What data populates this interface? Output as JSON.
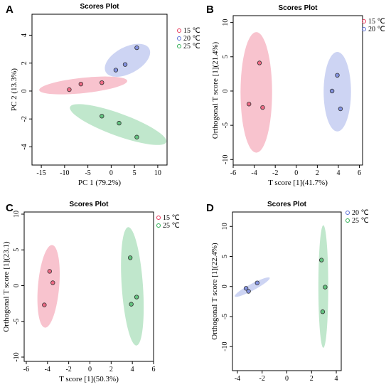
{
  "colors": {
    "15C": "#e8395c",
    "20C": "#5a6fd6",
    "25C": "#2fae55"
  },
  "chart_data": [
    {
      "panel": "A",
      "type": "scatter",
      "title": "Scores Plot",
      "xlabel": "PC 1 (79.2%)",
      "ylabel": "PC 2 (13.3%)",
      "xlim": [
        -17,
        12
      ],
      "ylim": [
        -5.3,
        5.5
      ],
      "xticks": [
        -15,
        -10,
        -5,
        0,
        5,
        10
      ],
      "yticks": [
        -4,
        -2,
        0,
        2,
        4
      ],
      "grid": false,
      "legend_position": "top-right",
      "series": [
        {
          "name": "15 ℃",
          "key": "15C",
          "points": [
            [
              -9,
              0.1
            ],
            [
              -6.5,
              0.5
            ],
            [
              -2,
              0.6
            ]
          ],
          "ellipse": {
            "cx": -6,
            "cy": 0.4,
            "rx": 9.5,
            "ry": 0.55,
            "angle": 6
          }
        },
        {
          "name": "20 ℃",
          "key": "20C",
          "points": [
            [
              1,
              1.5
            ],
            [
              3,
              1.9
            ],
            [
              5.5,
              3.1
            ]
          ],
          "ellipse": {
            "cx": 3.5,
            "cy": 2.2,
            "rx": 5.3,
            "ry": 0.95,
            "angle": 28
          }
        },
        {
          "name": "25 ℃",
          "key": "25C",
          "points": [
            [
              -2,
              -1.8
            ],
            [
              1.7,
              -2.3
            ],
            [
              5.5,
              -3.3
            ]
          ],
          "ellipse": {
            "cx": 1.5,
            "cy": -2.4,
            "rx": 11,
            "ry": 0.8,
            "angle": -20
          }
        }
      ]
    },
    {
      "panel": "B",
      "type": "scatter",
      "title": "Scores Plot",
      "xlabel": "T score [1](41.7%)",
      "ylabel": "Orthogonal T score [1](21.4%)",
      "xlim": [
        -6,
        6.3
      ],
      "ylim": [
        -10.8,
        11
      ],
      "xticks": [
        -6,
        -4,
        -2,
        0,
        2,
        4,
        6
      ],
      "yticks": [
        -10,
        -5,
        0,
        5,
        10
      ],
      "grid": false,
      "legend_position": "top-right",
      "series": [
        {
          "name": "15 ℃",
          "key": "15C",
          "points": [
            [
              -3.5,
              4.1
            ],
            [
              -4.5,
              -1.9
            ],
            [
              -3.2,
              -2.4
            ]
          ],
          "ellipse": {
            "cx": -3.8,
            "cy": -0.2,
            "rx": 1.5,
            "ry": 8.8,
            "angle": 0
          }
        },
        {
          "name": "20 ℃",
          "key": "20C",
          "points": [
            [
              3.9,
              2.3
            ],
            [
              3.4,
              0
            ],
            [
              4.2,
              -2.6
            ]
          ],
          "ellipse": {
            "cx": 3.9,
            "cy": -0.1,
            "rx": 1.3,
            "ry": 5.8,
            "angle": 0
          }
        }
      ]
    },
    {
      "panel": "C",
      "type": "scatter",
      "title": "Scores Plot",
      "xlabel": "T score [1](50.3%)",
      "ylabel": "Orthogonal T score [1](23.1)",
      "xlim": [
        -6.2,
        6
      ],
      "ylim": [
        -10.6,
        10.3
      ],
      "xticks": [
        -6,
        -4,
        -2,
        0,
        2,
        4,
        6
      ],
      "yticks": [
        -10,
        -5,
        0,
        5,
        10
      ],
      "grid": false,
      "legend_position": "top-right",
      "series": [
        {
          "name": "15 ℃",
          "key": "15C",
          "points": [
            [
              -3.8,
              2.0
            ],
            [
              -3.5,
              0.4
            ],
            [
              -4.3,
              -2.7
            ]
          ],
          "ellipse": {
            "cx": -3.9,
            "cy": -0.1,
            "rx": 1.0,
            "ry": 5.8,
            "angle": -5
          }
        },
        {
          "name": "25 ℃",
          "key": "25C",
          "points": [
            [
              3.8,
              3.9
            ],
            [
              4.4,
              -1.6
            ],
            [
              3.9,
              -2.6
            ]
          ],
          "ellipse": {
            "cx": 4.0,
            "cy": -0.1,
            "rx": 1.0,
            "ry": 8.3,
            "angle": 4
          }
        }
      ]
    },
    {
      "panel": "D",
      "type": "scatter",
      "title": "Scores Plot",
      "xlabel": "T score [1](26.4%)",
      "ylabel": "Orthogonal T score [1](22.4%)",
      "xlim": [
        -4.4,
        4.4
      ],
      "ylim": [
        -14,
        12.4
      ],
      "xticks": [
        -4,
        -2,
        0,
        2,
        4
      ],
      "yticks": [
        -10,
        -5,
        0,
        5,
        10
      ],
      "grid": false,
      "legend_position": "top-right",
      "series": [
        {
          "name": "20 ℃",
          "key": "20C",
          "points": [
            [
              -3.3,
              -0.3
            ],
            [
              -3.1,
              -0.8
            ],
            [
              -2.4,
              0.6
            ]
          ],
          "ellipse": {
            "cx": -2.8,
            "cy": -0.1,
            "rx": 1.6,
            "ry": 0.55,
            "angle": 28
          }
        },
        {
          "name": "25 ℃",
          "key": "25C",
          "points": [
            [
              2.8,
              4.4
            ],
            [
              3.1,
              -0.1
            ],
            [
              2.9,
              -4.2
            ]
          ],
          "ellipse": {
            "cx": 2.95,
            "cy": 0,
            "rx": 0.4,
            "ry": 10.2,
            "angle": 0
          }
        }
      ]
    }
  ]
}
